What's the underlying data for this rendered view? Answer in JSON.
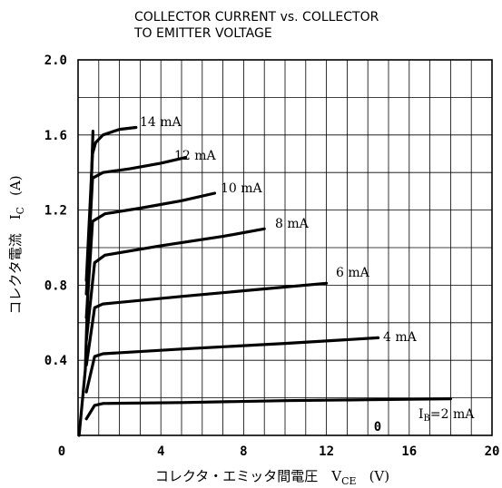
{
  "chart_data": {
    "type": "line",
    "title_line1": "COLLECTOR CURRENT vs. COLLECTOR",
    "title_line2": "TO EMITTER VOLTAGE",
    "xlabel": "コレクタ・エミッタ間電圧　V",
    "xlabel_sub": "CE",
    "xlabel_unit": "(V)",
    "ylabel": "コレクタ電流　I",
    "ylabel_sub": "C",
    "ylabel_unit": "(A)",
    "xlim": [
      0,
      20
    ],
    "ylim": [
      0,
      2.0
    ],
    "x_ticks": [
      "0",
      "4",
      "8",
      "12",
      "16",
      "20"
    ],
    "y_ticks": [
      "0.4",
      "0.8",
      "1.2",
      "1.6",
      "2.0"
    ],
    "grid": true,
    "zero_label": "0",
    "series": [
      {
        "name": "I",
        "name_sub": "B",
        "name_suffix": "=2 mA",
        "points": [
          [
            0.8,
            0.16
          ],
          [
            1.2,
            0.17
          ],
          [
            5,
            0.175
          ],
          [
            10,
            0.185
          ],
          [
            14,
            0.19
          ],
          [
            18,
            0.195
          ]
        ]
      },
      {
        "name": "4 mA",
        "points": [
          [
            0.8,
            0.42
          ],
          [
            1.2,
            0.435
          ],
          [
            5,
            0.46
          ],
          [
            10,
            0.49
          ],
          [
            14.5,
            0.52
          ]
        ]
      },
      {
        "name": "6 mA",
        "points": [
          [
            0.8,
            0.68
          ],
          [
            1.2,
            0.7
          ],
          [
            5,
            0.74
          ],
          [
            9,
            0.78
          ],
          [
            12,
            0.81
          ]
        ]
      },
      {
        "name": "8 mA",
        "points": [
          [
            0.8,
            0.92
          ],
          [
            1.3,
            0.96
          ],
          [
            4,
            1.01
          ],
          [
            7,
            1.06
          ],
          [
            9,
            1.1
          ]
        ]
      },
      {
        "name": "10 mA",
        "points": [
          [
            0.7,
            1.14
          ],
          [
            1.3,
            1.18
          ],
          [
            3,
            1.21
          ],
          [
            5,
            1.25
          ],
          [
            6.6,
            1.29
          ]
        ]
      },
      {
        "name": "12 mA",
        "points": [
          [
            0.7,
            1.37
          ],
          [
            1.2,
            1.4
          ],
          [
            2.5,
            1.42
          ],
          [
            4,
            1.45
          ],
          [
            5.2,
            1.48
          ]
        ]
      },
      {
        "name": "14 mA",
        "points": [
          [
            0.7,
            1.5
          ],
          [
            0.85,
            1.56
          ],
          [
            1.2,
            1.6
          ],
          [
            2,
            1.63
          ],
          [
            2.8,
            1.64
          ]
        ]
      }
    ]
  }
}
